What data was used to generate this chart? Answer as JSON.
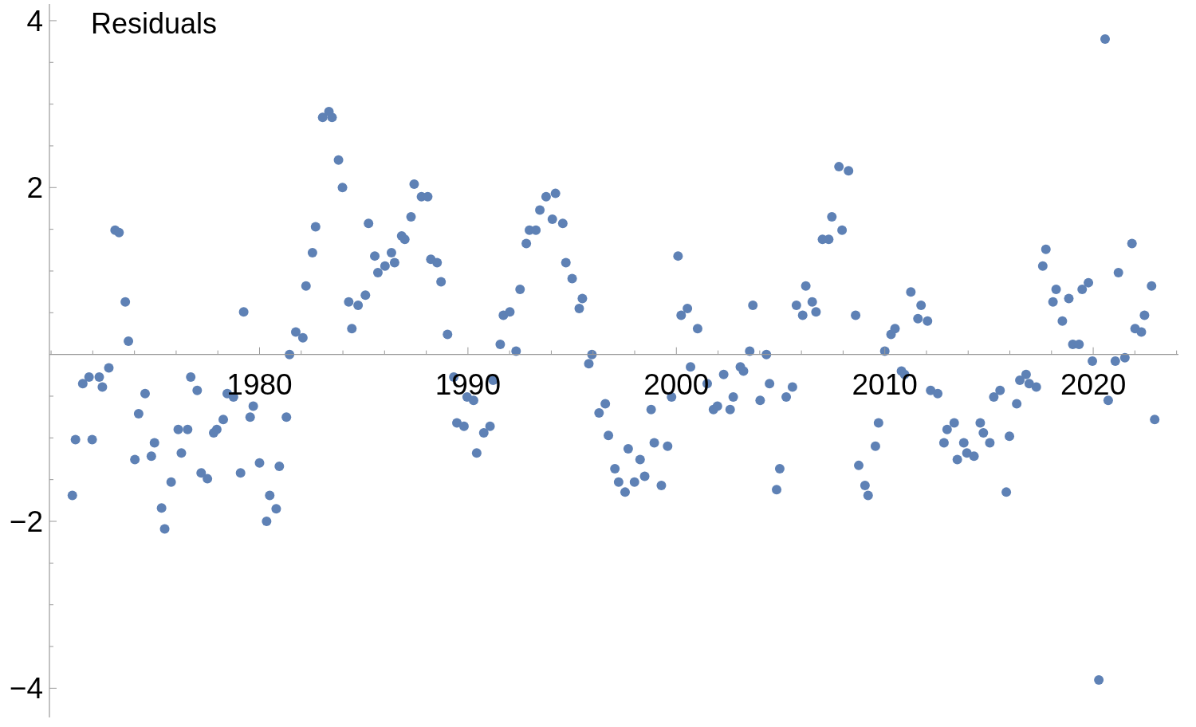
{
  "chart_data": {
    "type": "scatter",
    "ylabel": "Residuals",
    "color": "#5e81b5",
    "marker": "circle",
    "grid": false,
    "xlim": [
      1969.92,
      2024.09
    ],
    "ylim": [
      -4.35,
      4.2
    ],
    "xticks": [
      {
        "value": 1970,
        "label": null
      },
      {
        "value": 1972,
        "label": null
      },
      {
        "value": 1974,
        "label": null
      },
      {
        "value": 1976,
        "label": null
      },
      {
        "value": 1978,
        "label": null
      },
      1980,
      {
        "value": 1982,
        "label": null
      },
      {
        "value": 1984,
        "label": null
      },
      {
        "value": 1986,
        "label": null
      },
      {
        "value": 1988,
        "label": null
      },
      1990,
      {
        "value": 1992,
        "label": null
      },
      {
        "value": 1994,
        "label": null
      },
      {
        "value": 1996,
        "label": null
      },
      {
        "value": 1998,
        "label": null
      },
      2000,
      {
        "value": 2002,
        "label": null
      },
      {
        "value": 2004,
        "label": null
      },
      {
        "value": 2006,
        "label": null
      },
      {
        "value": 2008,
        "label": null
      },
      2010,
      {
        "value": 2012,
        "label": null
      },
      {
        "value": 2014,
        "label": null
      },
      {
        "value": 2016,
        "label": null
      },
      {
        "value": 2018,
        "label": null
      },
      2020,
      {
        "value": 2022,
        "label": null
      },
      {
        "value": 2024,
        "label": null
      }
    ],
    "yticks": [
      -4,
      {
        "value": -3.5,
        "label": null
      },
      {
        "value": -3,
        "label": null
      },
      {
        "value": -2.5,
        "label": null
      },
      -2,
      {
        "value": -1.5,
        "label": null
      },
      {
        "value": -1,
        "label": null
      },
      {
        "value": -0.5,
        "label": null
      },
      {
        "value": 0.5,
        "label": null
      },
      {
        "value": 1,
        "label": null
      },
      {
        "value": 1.5,
        "label": null
      },
      2,
      {
        "value": 2.5,
        "label": null
      },
      {
        "value": 3,
        "label": null
      },
      {
        "value": 3.5,
        "label": null
      },
      4
    ],
    "x": [
      1971.02,
      1971.17,
      1971.52,
      1971.82,
      1971.97,
      1972.31,
      1972.46,
      1972.77,
      1973.07,
      1973.26,
      1973.56,
      1973.71,
      1974.02,
      1974.2,
      1974.51,
      1974.81,
      1974.96,
      1975.3,
      1975.45,
      1975.76,
      1976.1,
      1976.25,
      1976.55,
      1976.7,
      1977.01,
      1977.2,
      1977.5,
      1977.8,
      1977.95,
      1978.26,
      1978.45,
      1978.75,
      1979.09,
      1979.24,
      1979.55,
      1979.7,
      1980.0,
      1980.34,
      1980.49,
      1980.8,
      1980.95,
      1981.29,
      1981.44,
      1981.74,
      1982.08,
      1982.23,
      1982.54,
      1982.69,
      1983.03,
      1983.33,
      1983.48,
      1983.79,
      1983.98,
      1984.28,
      1984.43,
      1984.73,
      1985.08,
      1985.23,
      1985.53,
      1985.68,
      1986.02,
      1986.33,
      1986.48,
      1986.82,
      1986.97,
      1987.27,
      1987.42,
      1987.77,
      1988.07,
      1988.22,
      1988.52,
      1988.71,
      1989.02,
      1989.32,
      1989.47,
      1989.81,
      1989.96,
      1990.27,
      1990.42,
      1990.76,
      1991.06,
      1991.21,
      1991.55,
      1991.7,
      1992.01,
      1992.31,
      1992.5,
      1992.8,
      1992.95,
      1993.26,
      1993.45,
      1993.75,
      1994.05,
      1994.2,
      1994.55,
      1994.7,
      1995.0,
      1995.34,
      1995.49,
      1995.8,
      1995.95,
      1996.29,
      1996.59,
      1996.74,
      1997.05,
      1997.23,
      1997.54,
      1997.69,
      1997.99,
      1998.26,
      1998.48,
      1998.79,
      1998.94,
      1999.28,
      1999.58,
      1999.77,
      2000.08,
      2000.23,
      2000.53,
      2000.68,
      2001.02,
      2001.48,
      2001.78,
      2001.97,
      2002.27,
      2002.58,
      2002.73,
      2003.07,
      2003.22,
      2003.52,
      2003.67,
      2004.02,
      2004.32,
      2004.47,
      2004.81,
      2004.96,
      2005.27,
      2005.57,
      2005.76,
      2006.06,
      2006.21,
      2006.52,
      2006.7,
      2007.01,
      2007.31,
      2007.46,
      2007.8,
      2007.95,
      2008.26,
      2008.6,
      2008.75,
      2009.05,
      2009.2,
      2009.55,
      2009.7,
      2010.0,
      2010.3,
      2010.49,
      2010.8,
      2010.95,
      2011.25,
      2011.59,
      2011.74,
      2012.05,
      2012.2,
      2012.54,
      2012.84,
      2012.99,
      2013.33,
      2013.48,
      2013.79,
      2013.94,
      2014.28,
      2014.58,
      2014.73,
      2015.04,
      2015.23,
      2015.53,
      2015.83,
      2015.98,
      2016.33,
      2016.48,
      2016.78,
      2016.93,
      2017.27,
      2017.58,
      2017.73,
      2018.07,
      2018.22,
      2018.52,
      2018.83,
      2019.02,
      2019.32,
      2019.47,
      2019.77,
      2019.96,
      2020.27,
      2020.57,
      2020.72,
      2021.06,
      2021.21,
      2021.52,
      2021.86,
      2022.01,
      2022.31,
      2022.46,
      2022.8,
      2022.95
    ],
    "values": [
      -1.69,
      -1.02,
      -0.35,
      -0.27,
      -1.02,
      -0.27,
      -0.39,
      -0.16,
      1.49,
      1.46,
      0.63,
      0.16,
      -1.26,
      -0.71,
      -0.47,
      -1.22,
      -1.06,
      -1.84,
      -2.09,
      -1.53,
      -0.9,
      -1.18,
      -0.9,
      -0.27,
      -0.43,
      -1.42,
      -1.49,
      -0.94,
      -0.9,
      -0.78,
      -0.47,
      -0.51,
      -1.42,
      0.51,
      -0.75,
      -0.62,
      -1.3,
      -2.0,
      -1.69,
      -1.85,
      -1.34,
      -0.75,
      0.0,
      0.27,
      0.2,
      0.82,
      1.22,
      1.53,
      2.84,
      2.91,
      2.84,
      2.33,
      2.0,
      0.63,
      0.31,
      0.59,
      0.71,
      1.57,
      1.18,
      0.98,
      1.06,
      1.22,
      1.1,
      1.42,
      1.38,
      1.65,
      2.04,
      1.89,
      1.89,
      1.14,
      1.1,
      0.87,
      0.24,
      -0.27,
      -0.82,
      -0.86,
      -0.51,
      -0.55,
      -1.18,
      -0.94,
      -0.86,
      -0.31,
      0.12,
      0.47,
      0.51,
      0.04,
      0.78,
      1.33,
      1.49,
      1.49,
      1.73,
      1.89,
      1.62,
      1.93,
      1.57,
      1.1,
      0.91,
      0.55,
      0.67,
      -0.11,
      0.0,
      -0.7,
      -0.59,
      -0.97,
      -1.37,
      -1.53,
      -1.65,
      -1.13,
      -1.53,
      -1.26,
      -1.46,
      -0.66,
      -1.06,
      -1.57,
      -1.1,
      -0.51,
      1.18,
      0.47,
      0.55,
      -0.15,
      0.31,
      -0.35,
      -0.66,
      -0.62,
      -0.24,
      -0.66,
      -0.51,
      -0.15,
      -0.2,
      0.04,
      0.59,
      -0.55,
      0.0,
      -0.35,
      -1.62,
      -1.37,
      -0.51,
      -0.39,
      0.59,
      0.47,
      0.82,
      0.63,
      0.51,
      1.38,
      1.38,
      1.65,
      2.25,
      1.49,
      2.2,
      0.47,
      -1.33,
      -1.57,
      -1.69,
      -1.1,
      -0.82,
      0.04,
      0.24,
      0.31,
      -0.2,
      -0.24,
      0.75,
      0.43,
      0.59,
      0.4,
      -0.43,
      -0.47,
      -1.06,
      -0.9,
      -0.82,
      -1.26,
      -1.06,
      -1.18,
      -1.22,
      -0.82,
      -0.94,
      -1.06,
      -0.51,
      -0.43,
      -1.65,
      -0.98,
      -0.59,
      -0.31,
      -0.24,
      -0.35,
      -0.39,
      1.06,
      1.26,
      0.63,
      0.78,
      0.4,
      0.67,
      0.12,
      0.12,
      0.78,
      0.86,
      -0.08,
      -3.9,
      3.78,
      -0.55,
      -0.08,
      0.98,
      -0.04,
      1.33,
      0.31,
      0.27,
      0.47,
      0.82,
      -0.78
    ]
  }
}
